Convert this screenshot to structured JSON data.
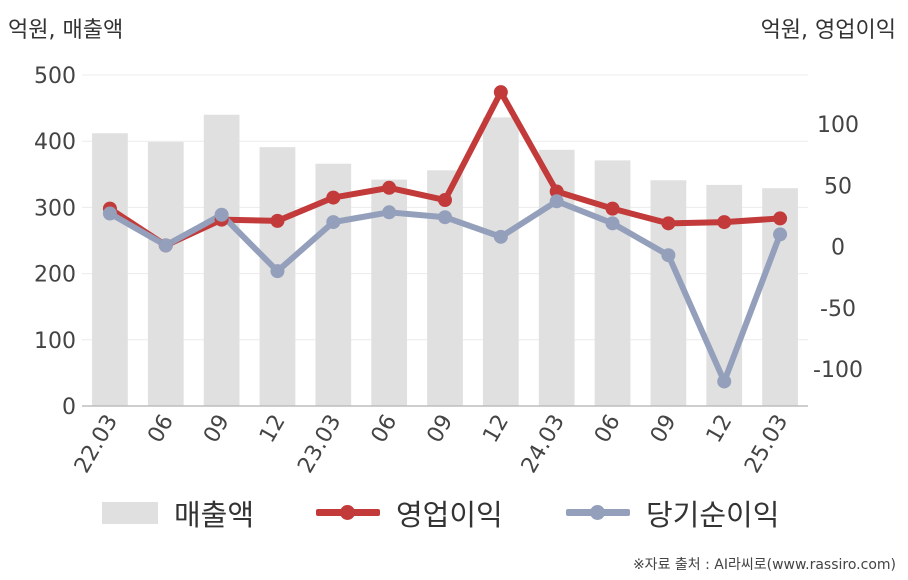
{
  "chart_data": {
    "type": "bar+line",
    "left_axis_title": "억원, 매출액",
    "right_axis_title": "억원, 영업이익",
    "categories": [
      "22.03",
      "06",
      "09",
      "12",
      "23.03",
      "06",
      "09",
      "12",
      "24.03",
      "06",
      "09",
      "12",
      "25.03"
    ],
    "left_axis": {
      "ylim": [
        0,
        500
      ],
      "ticks": [
        0,
        100,
        200,
        300,
        400,
        500
      ]
    },
    "right_axis": {
      "ylim": [
        -130,
        140
      ],
      "ticks": [
        -100,
        -50,
        0,
        50,
        100
      ]
    },
    "grid": true,
    "legend_position": "bottom",
    "series": [
      {
        "name": "매출액",
        "type": "bar",
        "axis": "left",
        "color": "#e0e0e0",
        "values": [
          412,
          399,
          440,
          391,
          366,
          342,
          356,
          436,
          387,
          371,
          341,
          334,
          329
        ]
      },
      {
        "name": "영업이익",
        "type": "line",
        "axis": "right",
        "color": "#c23a3a",
        "values": [
          31,
          1,
          22,
          21,
          40,
          48,
          38,
          126,
          45,
          31,
          19,
          20,
          23
        ]
      },
      {
        "name": "당기순이익",
        "type": "line",
        "axis": "right",
        "color": "#94a0bb",
        "values": [
          27,
          1,
          26,
          -20,
          20,
          28,
          24,
          8,
          37,
          19,
          -7,
          -110,
          10
        ]
      }
    ]
  },
  "source": "※자료 출처 : AI라씨로(www.rassiro.com)"
}
